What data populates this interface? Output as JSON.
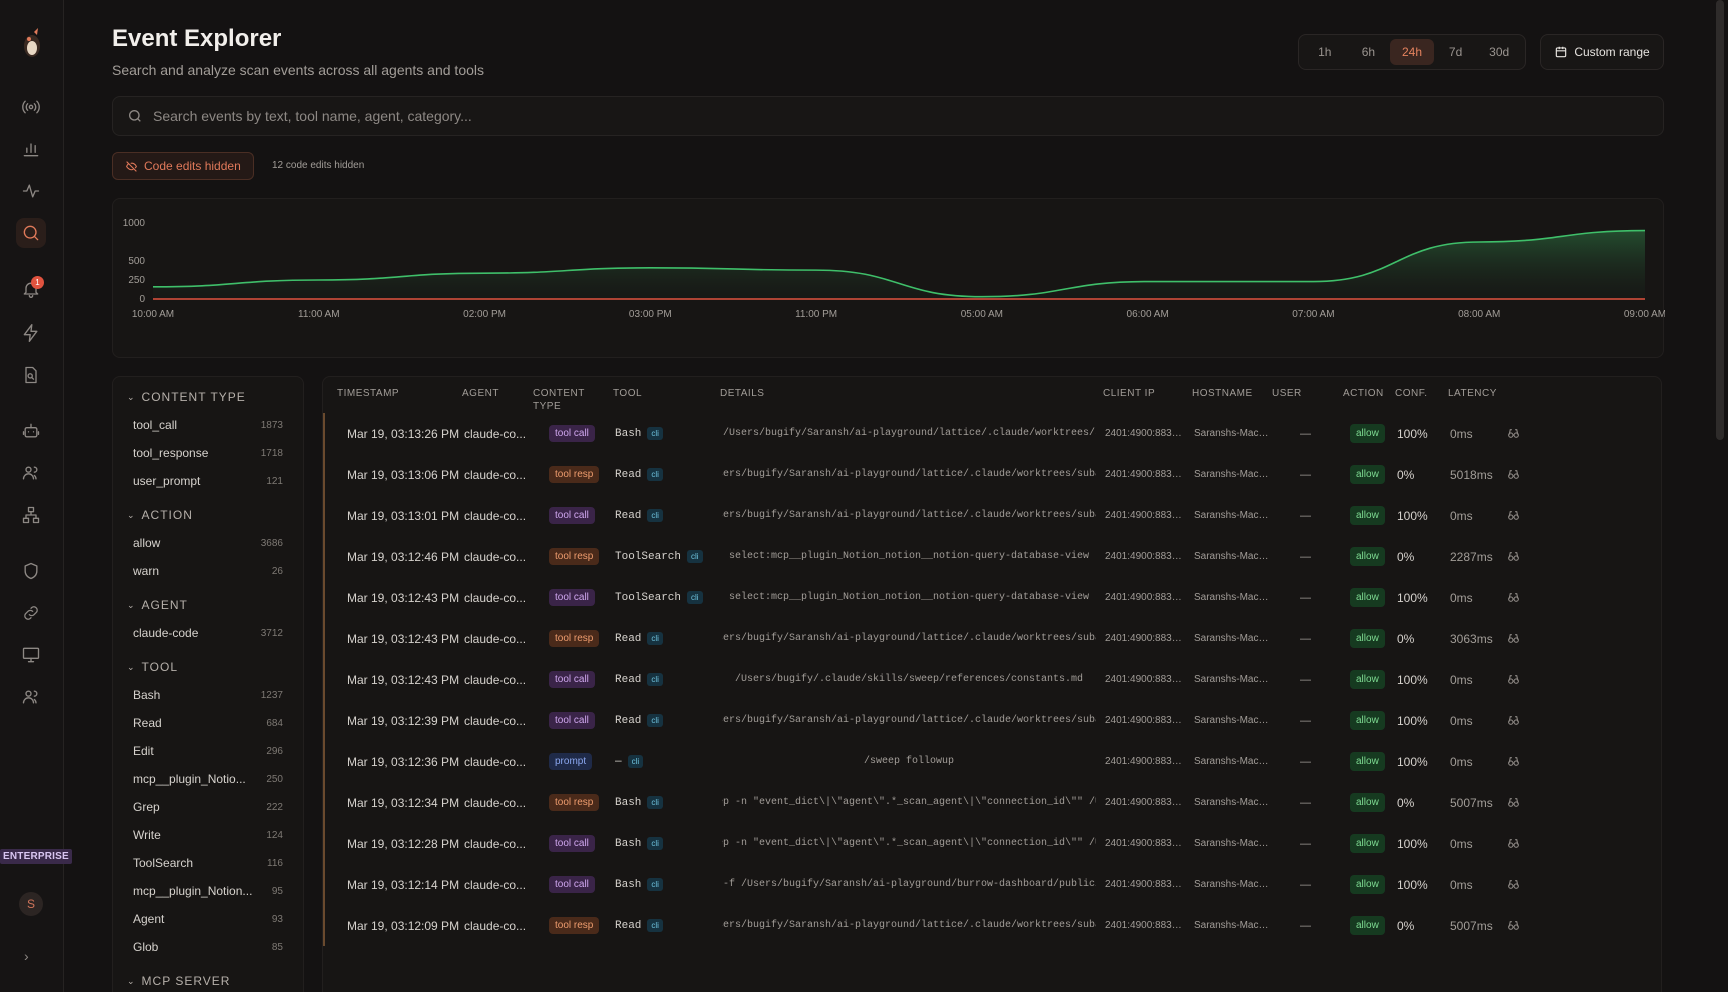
{
  "header": {
    "title": "Event Explorer",
    "subtitle": "Search and analyze scan events across all agents and tools"
  },
  "time_ranges": [
    {
      "label": "1h",
      "active": false
    },
    {
      "label": "6h",
      "active": false
    },
    {
      "label": "24h",
      "active": true
    },
    {
      "label": "7d",
      "active": false
    },
    {
      "label": "30d",
      "active": false
    }
  ],
  "custom_range_label": "Custom range",
  "search": {
    "placeholder": "Search events by text, tool name, agent, category..."
  },
  "code_edits": {
    "chip_label": "Code edits hidden",
    "note": "12 code edits hidden"
  },
  "sidebar": {
    "notification_count": "1",
    "badge": "ENTERPRISE",
    "avatar_initial": "S"
  },
  "chart_data": {
    "type": "area",
    "y_ticks": [
      "1000",
      "500",
      "250",
      "0"
    ],
    "x_ticks": [
      "10:00 AM",
      "11:00 AM",
      "02:00 PM",
      "03:00 PM",
      "11:00 PM",
      "05:00 AM",
      "06:00 AM",
      "07:00 AM",
      "08:00 AM",
      "09:00 AM"
    ],
    "series": [
      {
        "values": [
          160,
          250,
          340,
          410,
          380,
          30,
          230,
          230,
          750,
          900
        ]
      },
      {
        "values": [
          0,
          0,
          0,
          0,
          0,
          0,
          0,
          0,
          0,
          0
        ]
      }
    ],
    "colors": {
      "line": "#3fbf6a",
      "fill": "#1e3a26",
      "baseline": "#e0533f"
    },
    "ylim": [
      0,
      1000
    ]
  },
  "filters": [
    {
      "title": "CONTENT TYPE",
      "items": [
        {
          "label": "tool_call",
          "count": "1873"
        },
        {
          "label": "tool_response",
          "count": "1718"
        },
        {
          "label": "user_prompt",
          "count": "121"
        }
      ]
    },
    {
      "title": "ACTION",
      "items": [
        {
          "label": "allow",
          "count": "3686"
        },
        {
          "label": "warn",
          "count": "26"
        }
      ]
    },
    {
      "title": "AGENT",
      "items": [
        {
          "label": "claude-code",
          "count": "3712"
        }
      ]
    },
    {
      "title": "TOOL",
      "items": [
        {
          "label": "Bash",
          "count": "1237"
        },
        {
          "label": "Read",
          "count": "684"
        },
        {
          "label": "Edit",
          "count": "296"
        },
        {
          "label": "mcp__plugin_Notio...",
          "count": "250"
        },
        {
          "label": "Grep",
          "count": "222"
        },
        {
          "label": "Write",
          "count": "124"
        },
        {
          "label": "ToolSearch",
          "count": "116"
        },
        {
          "label": "mcp__plugin_Notion...",
          "count": "95"
        },
        {
          "label": "Agent",
          "count": "93"
        },
        {
          "label": "Glob",
          "count": "85"
        }
      ]
    },
    {
      "title": "MCP SERVER",
      "items": []
    }
  ],
  "table": {
    "columns": [
      "TIMESTAMP",
      "AGENT",
      "CONTENT TYPE",
      "TOOL",
      "DETAILS",
      "CLIENT IP",
      "HOSTNAME",
      "USER",
      "ACTION",
      "CONF.",
      "LATENCY"
    ],
    "rows": [
      {
        "ts": "Mar 19, 03:13:26 PM",
        "agent": "claude-co...",
        "type": "tool call",
        "tool": "Bash",
        "src": "cli",
        "details": "cd /Users/bugify/Saransh/ai-playground/lattice/.claude/worktrees/su…",
        "ip": "2401:4900:883…",
        "host": "Saranshs-Mac…",
        "user": "—",
        "action": "allow",
        "conf": "100%",
        "lat": "0ms"
      },
      {
        "ts": "Mar 19, 03:13:06 PM",
        "agent": "claude-co...",
        "type": "tool resp",
        "tool": "Read",
        "src": "cli",
        "details": "/Users/bugify/Saransh/ai-playground/lattice/.claude/worktrees/subag…",
        "ip": "2401:4900:883…",
        "host": "Saranshs-Mac…",
        "user": "—",
        "action": "allow",
        "conf": "0%",
        "lat": "5018ms"
      },
      {
        "ts": "Mar 19, 03:13:01 PM",
        "agent": "claude-co...",
        "type": "tool call",
        "tool": "Read",
        "src": "cli",
        "details": "/Users/bugify/Saransh/ai-playground/lattice/.claude/worktrees/subag…",
        "ip": "2401:4900:883…",
        "host": "Saranshs-Mac…",
        "user": "—",
        "action": "allow",
        "conf": "100%",
        "lat": "0ms"
      },
      {
        "ts": "Mar 19, 03:12:46 PM",
        "agent": "claude-co...",
        "type": "tool resp",
        "tool": "ToolSearch",
        "src": "cli",
        "details": "select:mcp__plugin_Notion_notion__notion-query-database-view",
        "ip": "2401:4900:883…",
        "host": "Saranshs-Mac…",
        "user": "—",
        "action": "allow",
        "conf": "0%",
        "lat": "2287ms"
      },
      {
        "ts": "Mar 19, 03:12:43 PM",
        "agent": "claude-co...",
        "type": "tool call",
        "tool": "ToolSearch",
        "src": "cli",
        "details": "select:mcp__plugin_Notion_notion__notion-query-database-view",
        "ip": "2401:4900:883…",
        "host": "Saranshs-Mac…",
        "user": "—",
        "action": "allow",
        "conf": "100%",
        "lat": "0ms"
      },
      {
        "ts": "Mar 19, 03:12:43 PM",
        "agent": "claude-co...",
        "type": "tool resp",
        "tool": "Read",
        "src": "cli",
        "details": "/Users/bugify/Saransh/ai-playground/lattice/.claude/worktrees/subag…",
        "ip": "2401:4900:883…",
        "host": "Saranshs-Mac…",
        "user": "—",
        "action": "allow",
        "conf": "0%",
        "lat": "3063ms"
      },
      {
        "ts": "Mar 19, 03:12:43 PM",
        "agent": "claude-co...",
        "type": "tool call",
        "tool": "Read",
        "src": "cli",
        "details": "/Users/bugify/.claude/skills/sweep/references/constants.md",
        "ip": "2401:4900:883…",
        "host": "Saranshs-Mac…",
        "user": "—",
        "action": "allow",
        "conf": "100%",
        "lat": "0ms"
      },
      {
        "ts": "Mar 19, 03:12:39 PM",
        "agent": "claude-co...",
        "type": "tool call",
        "tool": "Read",
        "src": "cli",
        "details": "/Users/bugify/Saransh/ai-playground/lattice/.claude/worktrees/subag…",
        "ip": "2401:4900:883…",
        "host": "Saranshs-Mac…",
        "user": "—",
        "action": "allow",
        "conf": "100%",
        "lat": "0ms"
      },
      {
        "ts": "Mar 19, 03:12:36 PM",
        "agent": "claude-co...",
        "type": "prompt",
        "tool": "—",
        "src": "cli",
        "details": "/sweep followup",
        "ip": "2401:4900:883…",
        "host": "Saranshs-Mac…",
        "user": "—",
        "action": "allow",
        "conf": "100%",
        "lat": "0ms"
      },
      {
        "ts": "Mar 19, 03:12:34 PM",
        "agent": "claude-co...",
        "type": "tool resp",
        "tool": "Bash",
        "src": "cli",
        "details": "grep -n \"event_dict\\|\\\"agent\\\".*_scan_agent\\|\\\"connection_id\\\"\" /Us…",
        "ip": "2401:4900:883…",
        "host": "Saranshs-Mac…",
        "user": "—",
        "action": "allow",
        "conf": "0%",
        "lat": "5007ms"
      },
      {
        "ts": "Mar 19, 03:12:28 PM",
        "agent": "claude-co...",
        "type": "tool call",
        "tool": "Bash",
        "src": "cli",
        "details": "grep -n \"event_dict\\|\\\"agent\\\".*_scan_agent\\|\\\"connection_id\\\"\" /Us…",
        "ip": "2401:4900:883…",
        "host": "Saranshs-Mac…",
        "user": "—",
        "action": "allow",
        "conf": "100%",
        "lat": "0ms"
      },
      {
        "ts": "Mar 19, 03:12:14 PM",
        "agent": "claude-co...",
        "type": "tool call",
        "tool": "Bash",
        "src": "cli",
        "details": "rm -f /Users/bugify/Saransh/ai-playground/burrow-dashboard/public/s…",
        "ip": "2401:4900:883…",
        "host": "Saranshs-Mac…",
        "user": "—",
        "action": "allow",
        "conf": "100%",
        "lat": "0ms"
      },
      {
        "ts": "Mar 19, 03:12:09 PM",
        "agent": "claude-co...",
        "type": "tool resp",
        "tool": "Read",
        "src": "cli",
        "details": "/Users/bugify/Saransh/ai-playground/lattice/.claude/worktrees/subag…",
        "ip": "2401:4900:883…",
        "host": "Saranshs-Mac…",
        "user": "—",
        "action": "allow",
        "conf": "0%",
        "lat": "5007ms"
      }
    ]
  }
}
